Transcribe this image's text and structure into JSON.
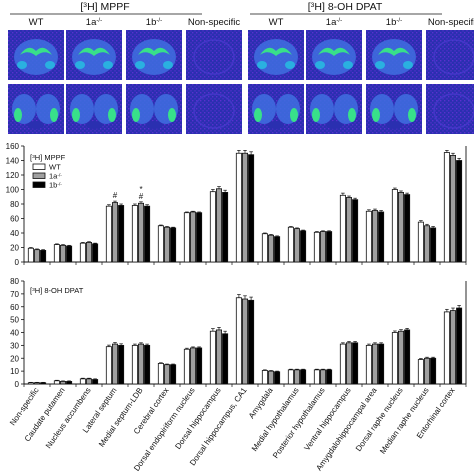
{
  "groups": [
    {
      "label": "[3H] MPPF",
      "subs": [
        "WT",
        "1a-/-",
        "1b-/-",
        "Non-specific"
      ]
    },
    {
      "label": "[3H] 8-OH DPAT",
      "subs": [
        "WT",
        "1a-/-",
        "1b-/-",
        "Non-specific"
      ]
    }
  ],
  "colors": {
    "bg": "#2a2fb0",
    "speckle": "#5a2fd0",
    "tissue": "#3f6fe0",
    "hot": "#38e08a",
    "warm": "#2ab0e0"
  },
  "chart_data": [
    {
      "type": "bar",
      "panel_label": "[3H] MPPF",
      "legend": [
        "WT",
        "1a-/-",
        "1b-/-"
      ],
      "ylim": [
        0,
        160
      ],
      "yticks": [
        0,
        20,
        40,
        60,
        80,
        100,
        120,
        140,
        160
      ],
      "categories": [
        "Non-specific",
        "Caudate putamen",
        "Nucleus accumbens",
        "Lateral septum",
        "Medial septum-LDB",
        "Cerebral cortex",
        "Dorsal endopiriform nucleus",
        "Dorsal hippocampus",
        "Dorsal hippocampus, CA1",
        "Amygdala",
        "Medial hypothalamus",
        "Posterior hypothalamus",
        "Ventral hippocampus",
        "Amygdalohippocampal area",
        "Dorsal raphe nucleus",
        "Median raphe nucleus",
        "Entorhinal cortex"
      ],
      "series": [
        {
          "name": "WT",
          "values": [
            19,
            24,
            26,
            77,
            78,
            50,
            68,
            97,
            150,
            39,
            48,
            41,
            92,
            70,
            100,
            55,
            151
          ]
        },
        {
          "name": "1a-/-",
          "values": [
            17,
            23,
            27,
            82,
            81,
            48,
            69,
            101,
            150,
            37,
            46,
            42,
            89,
            71,
            96,
            50,
            147
          ]
        },
        {
          "name": "1b-/-",
          "values": [
            16,
            22,
            25,
            78,
            77,
            47,
            68,
            96,
            148,
            35,
            43,
            42,
            86,
            69,
            93,
            47,
            140
          ]
        }
      ],
      "errors": [
        [
          1,
          1,
          1,
          2,
          2,
          1,
          1,
          3,
          4,
          1,
          1,
          1,
          3,
          2,
          2,
          2,
          3
        ],
        [
          1,
          1,
          1,
          2,
          2,
          1,
          1,
          3,
          4,
          1,
          1,
          1,
          2,
          2,
          2,
          2,
          3
        ],
        [
          1,
          1,
          1,
          2,
          2,
          1,
          1,
          3,
          4,
          1,
          1,
          1,
          2,
          2,
          2,
          2,
          3
        ]
      ],
      "annotations": [
        {
          "category_index": 3,
          "series_index": 1,
          "text": "#"
        },
        {
          "category_index": 4,
          "series_index": 1,
          "text": "#"
        },
        {
          "category_index": 4,
          "series_index": 1,
          "text": "*"
        }
      ]
    },
    {
      "type": "bar",
      "panel_label": "[3H] 8-OH DPAT",
      "ylim": [
        0,
        80
      ],
      "yticks": [
        0,
        10,
        20,
        30,
        40,
        50,
        60,
        70,
        80
      ],
      "categories": [
        "Non-specific",
        "Caudate putamen",
        "Nucleus accumbens",
        "Lateral septum",
        "Medial septum-LDB",
        "Cerebral cortex",
        "Dorsal endopiriform nucleus",
        "Dorsal hippocampus",
        "Dorsal hippocampus, CA1",
        "Amygdala",
        "Medial hypothalamus",
        "Posterior hypothalamus",
        "Ventral hippocampus",
        "Amygdalohippocampal area",
        "Dorsal raphe nucleus",
        "Median raphe nucleus",
        "Entorhinal cortex"
      ],
      "series": [
        {
          "name": "WT",
          "values": [
            1,
            2.5,
            4,
            29,
            30,
            16,
            27,
            41,
            67,
            10.5,
            11,
            11,
            31,
            30,
            40,
            19,
            56
          ]
        },
        {
          "name": "1a-/-",
          "values": [
            1,
            2,
            4,
            31,
            31,
            15,
            28,
            42,
            66,
            10,
            11,
            11,
            32,
            31,
            41,
            20,
            57
          ]
        },
        {
          "name": "1b-/-",
          "values": [
            1,
            2,
            3.5,
            30,
            30,
            15,
            28,
            39,
            65,
            9.5,
            11,
            11,
            32,
            31,
            42,
            20,
            59
          ]
        }
      ],
      "errors": [
        [
          0.3,
          0.4,
          0.5,
          1.2,
          1,
          0.5,
          0.8,
          2,
          2.5,
          0.5,
          0.5,
          0.5,
          1,
          1,
          1.2,
          0.8,
          2
        ],
        [
          0.3,
          0.4,
          0.5,
          1.2,
          1,
          0.5,
          0.8,
          2,
          2.5,
          0.5,
          0.5,
          0.5,
          1,
          1,
          1.2,
          0.8,
          2
        ],
        [
          0.3,
          0.4,
          0.5,
          1.2,
          1,
          0.5,
          0.8,
          2,
          2.5,
          0.5,
          0.5,
          0.5,
          1,
          1,
          1.2,
          0.8,
          2
        ]
      ]
    }
  ]
}
